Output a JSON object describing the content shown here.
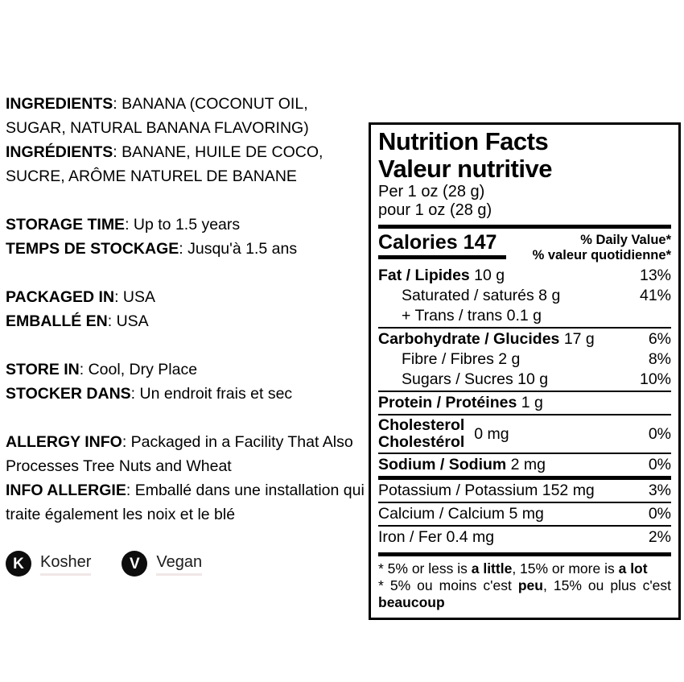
{
  "page": {
    "background": "#ffffff",
    "text_color": "#000000",
    "accent_black": "#0d0d0d"
  },
  "info_panel": {
    "ingredients": {
      "en_label": "INGREDIENTS",
      "en_text": ": BANANA (COCONUT OIL, SUGAR, NATURAL BANANA FLAVORING)",
      "fr_label": "INGRÉDIENTS",
      "fr_text": ": BANANE, HUILE DE COCO, SUCRE, ARÔME NATUREL DE BANANE"
    },
    "storage_time": {
      "en_label": "STORAGE TIME",
      "en_text": ": Up to 1.5 years",
      "fr_label": "TEMPS DE STOCKAGE",
      "fr_text": ": Jusqu'à 1.5 ans"
    },
    "packaged_in": {
      "en_label": "PACKAGED IN",
      "en_text": ": USA",
      "fr_label": "EMBALLÉ EN",
      "fr_text": ": USA"
    },
    "store_in": {
      "en_label": "STORE IN",
      "en_text": ": Cool, Dry Place",
      "fr_label": "STOCKER DANS",
      "fr_text": ": Un endroit frais et sec"
    },
    "allergy": {
      "en_label": "ALLERGY INFO",
      "en_text": ": Packaged in a Facility That Also Processes Tree Nuts and Wheat",
      "fr_label": "INFO ALLERGIE",
      "fr_text": ": Emballé dans une installation qui traite également les noix et le blé"
    },
    "badges": [
      {
        "icon_letter": "K",
        "label": "Kosher"
      },
      {
        "icon_letter": "V",
        "label": "Vegan"
      }
    ]
  },
  "nutrition_facts": {
    "title_en": "Nutrition Facts",
    "title_fr": "Valeur nutritive",
    "serving_en": "Per 1 oz (28 g)",
    "serving_fr": "pour 1 oz (28 g)",
    "calories_label": "Calories",
    "calories_value": "147",
    "daily_value_header_en": "% Daily Value*",
    "daily_value_header_fr": "% valeur quotidienne*",
    "rows": [
      {
        "sep": "none",
        "indent": false,
        "parts": [
          {
            "t": "Fat / Lipides",
            "b": true
          },
          {
            "t": " 10 g",
            "b": false
          }
        ],
        "dv": "13%"
      },
      {
        "sep": "none",
        "indent": true,
        "parts": [
          {
            "t": "Saturated / saturés 8 g",
            "b": false
          }
        ],
        "dv": "41%"
      },
      {
        "sep": "none",
        "indent": true,
        "parts": [
          {
            "t": "+ Trans / trans 0.1 g",
            "b": false
          }
        ],
        "dv": ""
      },
      {
        "sep": "thin",
        "indent": false,
        "parts": [
          {
            "t": "Carbohydrate / Glucides",
            "b": true
          },
          {
            "t": " 17 g",
            "b": false
          }
        ],
        "dv": "6%"
      },
      {
        "sep": "none",
        "indent": true,
        "parts": [
          {
            "t": "Fibre / Fibres 2 g",
            "b": false
          }
        ],
        "dv": "8%"
      },
      {
        "sep": "none",
        "indent": true,
        "parts": [
          {
            "t": "Sugars / Sucres 10 g",
            "b": false
          }
        ],
        "dv": "10%"
      },
      {
        "sep": "thin",
        "indent": false,
        "parts": [
          {
            "t": "Protein / Protéines",
            "b": true
          },
          {
            "t": " 1 g",
            "b": false
          }
        ],
        "dv": ""
      },
      {
        "sep": "thin",
        "indent": false,
        "name_lines": [
          "Cholesterol",
          "Cholestérol"
        ],
        "amount": "0 mg",
        "dv": "0%"
      },
      {
        "sep": "thin",
        "indent": false,
        "parts": [
          {
            "t": "Sodium / Sodium",
            "b": true
          },
          {
            "t": " 2 mg",
            "b": false
          }
        ],
        "dv": "0%"
      },
      {
        "sep": "thick",
        "indent": false,
        "parts": [
          {
            "t": "Potassium / Potassium 152 mg",
            "b": false
          }
        ],
        "dv": "3%"
      },
      {
        "sep": "thin",
        "indent": false,
        "parts": [
          {
            "t": "Calcium / Calcium 5 mg",
            "b": false
          }
        ],
        "dv": "0%"
      },
      {
        "sep": "thin",
        "indent": false,
        "parts": [
          {
            "t": "Iron / Fer 0.4 mg",
            "b": false
          }
        ],
        "dv": "2%"
      }
    ],
    "footnotes": [
      {
        "justify": false,
        "parts": [
          {
            "t": "* 5% or less is ",
            "b": false
          },
          {
            "t": "a little",
            "b": true
          },
          {
            "t": ", 15% or more is ",
            "b": false
          },
          {
            "t": "a lot",
            "b": true
          }
        ]
      },
      {
        "justify": true,
        "parts": [
          {
            "t": "* 5% ou moins c'est ",
            "b": false
          },
          {
            "t": "peu",
            "b": true
          },
          {
            "t": ", 15% ou plus c'est ",
            "b": false
          },
          {
            "t": "beaucoup",
            "b": true
          }
        ]
      }
    ]
  }
}
